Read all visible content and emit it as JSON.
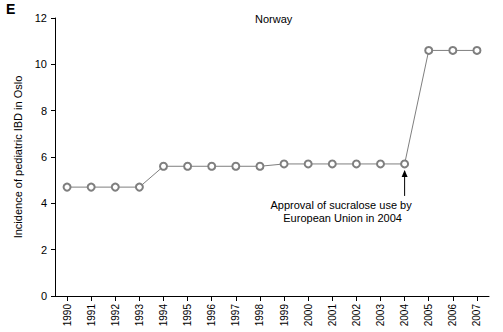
{
  "chart_data": {
    "type": "line",
    "title": "Norway",
    "panel_label": "E",
    "y_label": "Incidence of pediatric IBD in Oslo",
    "categories": [
      "1990",
      "1991",
      "1992",
      "1993",
      "1994",
      "1995",
      "1996",
      "1997",
      "1998",
      "1999",
      "2000",
      "2001",
      "2002",
      "2003",
      "2004",
      "2005",
      "2006",
      "2007"
    ],
    "values": [
      4.7,
      4.7,
      4.7,
      4.7,
      5.6,
      5.6,
      5.6,
      5.6,
      5.6,
      5.7,
      5.7,
      5.7,
      5.7,
      5.7,
      5.7,
      10.6,
      10.6,
      10.6
    ],
    "color": "#7f7f7f",
    "marker": "open circle",
    "ylim": [
      0,
      12
    ],
    "yticks": [
      0,
      2,
      4,
      6,
      8,
      10,
      12
    ],
    "grid": false,
    "annotations": [
      {
        "text": "Approval of sucralose use by European Union in 2004",
        "x": "2004"
      }
    ]
  }
}
